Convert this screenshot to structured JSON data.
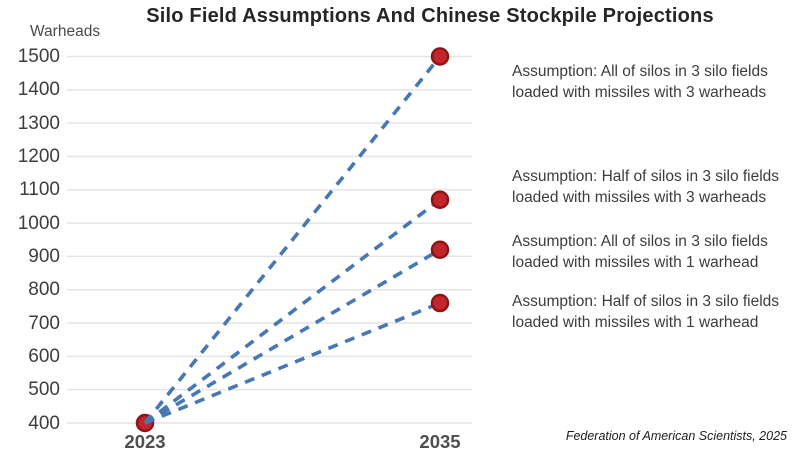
{
  "header": {
    "title": "Silo Field Assumptions And Chinese Stockpile Projections",
    "y_axis_unit_label": "Warheads"
  },
  "chart_data": {
    "type": "line",
    "title": "Silo Field Assumptions And Chinese Stockpile Projections",
    "ylabel": "Warheads",
    "xlabel": "",
    "x": [
      2023,
      2035
    ],
    "xtick_labels": [
      "2023",
      "2035"
    ],
    "yticks": [
      400,
      500,
      600,
      700,
      800,
      900,
      1000,
      1100,
      1200,
      1300,
      1400,
      1500
    ],
    "ylim": [
      400,
      1500
    ],
    "grid": true,
    "line_style": "dashed",
    "legend_position": "none",
    "series": [
      {
        "name": "All of silos in 3 silo fields loaded with missiles with 3 warheads",
        "values": [
          400,
          1500
        ]
      },
      {
        "name": "Half of silos in 3 silo fields loaded with missiles with 3 warheads",
        "values": [
          400,
          1070
        ]
      },
      {
        "name": "All of silos in 3 silo fields loaded with missiles with 1 warhead",
        "values": [
          400,
          920
        ]
      },
      {
        "name": "Half of silos in 3 silo fields loaded with missiles with 1 warhead",
        "values": [
          400,
          760
        ]
      }
    ],
    "colors": {
      "line": "#4678b4",
      "point_fill": "#c2262b",
      "point_stroke": "#8e1418",
      "grid": "#e4e4e4"
    }
  },
  "annotations": [
    {
      "text": "Assumption: All of silos in 3 silo fields\nloaded with missiles with 3 warheads"
    },
    {
      "text": "Assumption: Half of silos in 3 silo fields\nloaded with missiles with 3 warheads"
    },
    {
      "text": "Assumption: All of silos in 3 silo fields\nloaded with missiles with 1 warhead"
    },
    {
      "text": "Assumption: Half of silos in 3 silo fields\nloaded with missiles with 1 warhead"
    }
  ],
  "footer": {
    "attribution": "Federation of American Scientists, 2025"
  }
}
